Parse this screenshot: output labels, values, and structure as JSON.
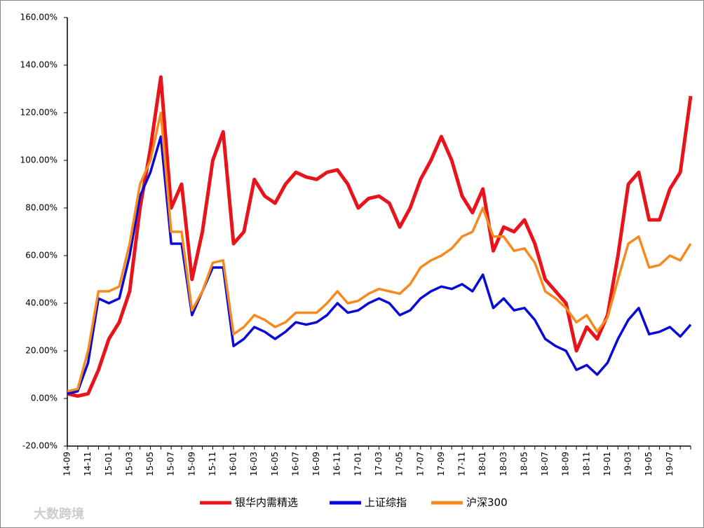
{
  "chart_data": {
    "type": "line",
    "categories": [
      "14-09",
      null,
      "14-11",
      null,
      "15-01",
      null,
      "15-03",
      null,
      "15-05",
      null,
      "15-07",
      null,
      "15-09",
      null,
      "15-11",
      null,
      "16-01",
      null,
      "16-03",
      null,
      "16-05",
      null,
      "16-07",
      null,
      "16-09",
      null,
      "16-11",
      null,
      "17-01",
      null,
      "17-03",
      null,
      "17-05",
      null,
      "17-07",
      null,
      "17-09",
      null,
      "17-11",
      null,
      "18-01",
      null,
      "18-03",
      null,
      "18-05",
      null,
      "18-07",
      null,
      "18-09",
      null,
      "18-11",
      null,
      "19-01",
      null,
      "19-03",
      null,
      "19-05",
      null,
      "19-07",
      null,
      null
    ],
    "series": [
      {
        "name": "银华内需精选",
        "color": "#e8141b",
        "values": [
          2,
          1,
          2,
          12,
          25,
          32,
          45,
          80,
          105,
          135,
          80,
          90,
          50,
          70,
          100,
          112,
          65,
          70,
          92,
          85,
          82,
          90,
          95,
          93,
          92,
          95,
          96,
          90,
          80,
          84,
          85,
          82,
          72,
          80,
          92,
          100,
          110,
          100,
          85,
          78,
          88,
          62,
          72,
          70,
          75,
          65,
          50,
          45,
          40,
          20,
          30,
          25,
          35,
          60,
          90,
          95,
          75,
          75,
          88,
          95,
          127
        ]
      },
      {
        "name": "上证综指",
        "color": "#0a0ad8",
        "values": [
          2,
          3,
          15,
          42,
          40,
          42,
          60,
          85,
          95,
          110,
          65,
          65,
          35,
          45,
          55,
          55,
          22,
          25,
          30,
          28,
          25,
          28,
          32,
          31,
          32,
          35,
          40,
          36,
          37,
          40,
          42,
          40,
          35,
          37,
          42,
          45,
          47,
          46,
          48,
          45,
          52,
          38,
          42,
          37,
          38,
          33,
          25,
          22,
          20,
          12,
          14,
          10,
          15,
          25,
          33,
          38,
          27,
          28,
          30,
          26,
          31
        ]
      },
      {
        "name": "沪深300",
        "color": "#f58a1f",
        "values": [
          3,
          4,
          20,
          45,
          45,
          47,
          65,
          90,
          100,
          120,
          70,
          70,
          37,
          45,
          57,
          58,
          27,
          30,
          35,
          33,
          30,
          32,
          36,
          36,
          36,
          40,
          45,
          40,
          41,
          44,
          46,
          45,
          44,
          48,
          55,
          58,
          60,
          63,
          68,
          70,
          80,
          68,
          68,
          62,
          63,
          57,
          45,
          42,
          38,
          32,
          35,
          28,
          34,
          50,
          65,
          68,
          55,
          56,
          60,
          58,
          65
        ]
      }
    ],
    "ylim": [
      -20,
      160
    ],
    "yticks": [
      {
        "value": -20,
        "label": "-20.00%"
      },
      {
        "value": 0,
        "label": "0.00%"
      },
      {
        "value": 20,
        "label": "20.00%"
      },
      {
        "value": 40,
        "label": "40.00%"
      },
      {
        "value": 60,
        "label": "60.00%"
      },
      {
        "value": 80,
        "label": "80.00%"
      },
      {
        "value": 100,
        "label": "100.00%"
      },
      {
        "value": 120,
        "label": "120.00%"
      },
      {
        "value": 140,
        "label": "140.00%"
      },
      {
        "value": 160,
        "label": "160.00%"
      }
    ],
    "legend": "bottom",
    "watermark": "大数跨境"
  }
}
